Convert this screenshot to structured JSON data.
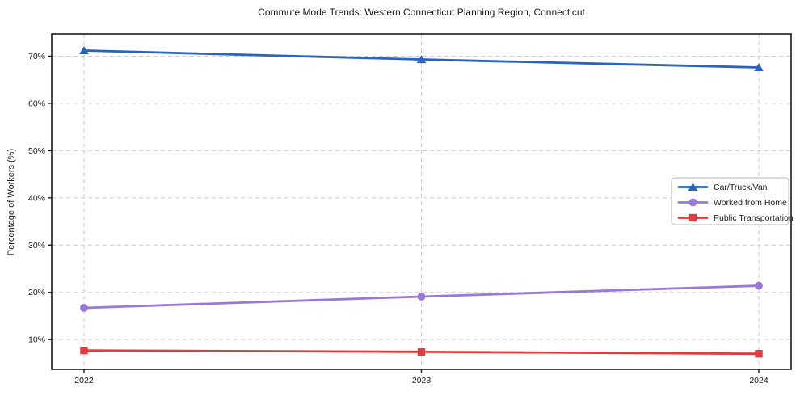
{
  "title": "Commute Mode Trends: Western Connecticut Planning Region, Connecticut",
  "chart_data": {
    "type": "line",
    "title": "Commute Mode Trends: Western Connecticut Planning Region, Connecticut",
    "xlabel": "",
    "ylabel": "Percentage of Workers (%)",
    "x": [
      "2022",
      "2023",
      "2024"
    ],
    "series": [
      {
        "name": "Car/Truck/Van",
        "values": [
          71.2,
          69.3,
          67.6
        ],
        "color": "#2b63c1",
        "marker": "triangle"
      },
      {
        "name": "Worked from Home",
        "values": [
          16.7,
          19.1,
          21.4
        ],
        "color": "#9878d8",
        "marker": "circle"
      },
      {
        "name": "Public Transportation",
        "values": [
          7.7,
          7.4,
          7.0
        ],
        "color": "#e03c3c",
        "marker": "square"
      }
    ],
    "ytick_values": [
      10,
      20,
      30,
      40,
      50,
      60,
      70
    ],
    "ytick_labels": [
      "10%",
      "20%",
      "30%",
      "40%",
      "50%",
      "60%",
      "70%"
    ],
    "ylim": [
      3.7,
      74.7
    ],
    "grid": "dashed-both",
    "legend_position": "center-right",
    "legend_entries": [
      "Car/Truck/Van",
      "Worked from Home",
      "Public Transportation"
    ]
  },
  "style": {
    "grid_color": "#cccccc",
    "spine_color": "#1a1a1a",
    "legend_border_color": "#b8b8b8",
    "background": "#ffffff"
  }
}
